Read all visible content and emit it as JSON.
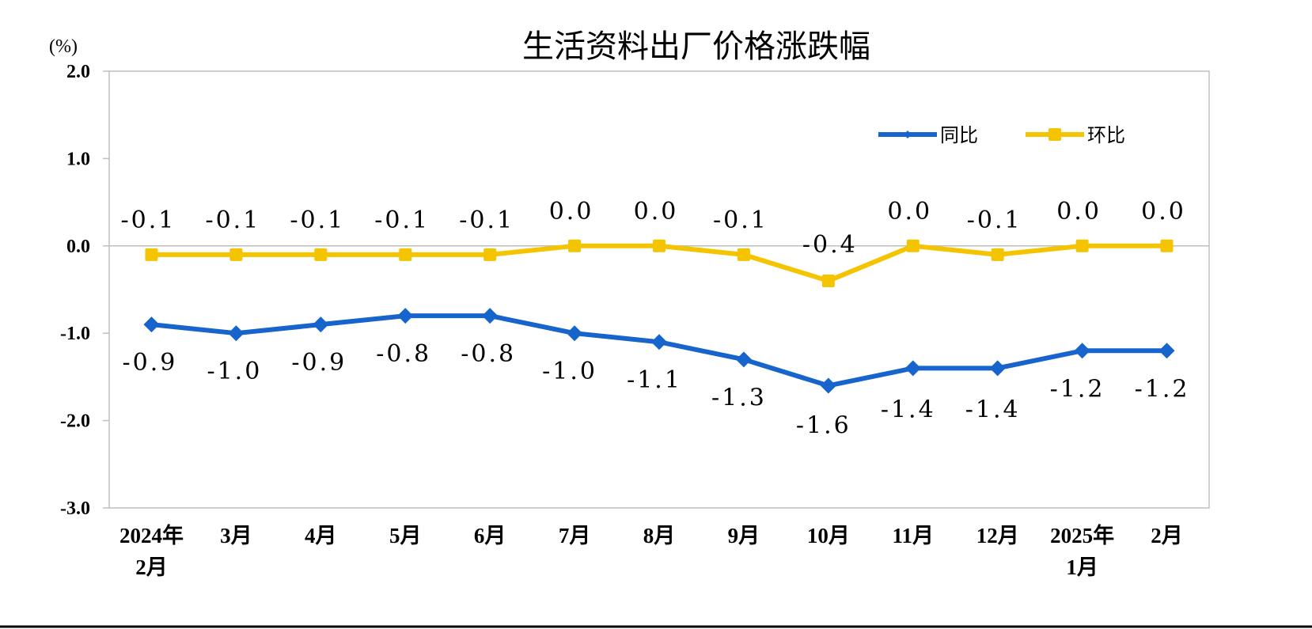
{
  "chart_data": {
    "type": "line",
    "title": "生活资料出厂价格涨跌幅",
    "ylabel": "(%)",
    "ylim": [
      -3.0,
      2.0
    ],
    "yticks": [
      "2.0",
      "1.0",
      "0.0",
      "-1.0",
      "-2.0",
      "-3.0"
    ],
    "categories": [
      [
        "2024年",
        "2月"
      ],
      [
        "3月"
      ],
      [
        "4月"
      ],
      [
        "5月"
      ],
      [
        "6月"
      ],
      [
        "7月"
      ],
      [
        "8月"
      ],
      [
        "9月"
      ],
      [
        "10月"
      ],
      [
        "11月"
      ],
      [
        "12月"
      ],
      [
        "2025年",
        "1月"
      ],
      [
        "2月"
      ]
    ],
    "series": [
      {
        "name": "同比",
        "color": "#1764cc",
        "marker": "diamond",
        "values": [
          -0.9,
          -1.0,
          -0.9,
          -0.8,
          -0.8,
          -1.0,
          -1.1,
          -1.3,
          -1.6,
          -1.4,
          -1.4,
          -1.2,
          -1.2
        ],
        "labels": [
          "-0.9",
          "-1.0",
          "-0.9",
          "-0.8",
          "-0.8",
          "-1.0",
          "-1.1",
          "-1.3",
          "-1.6",
          "-1.4",
          "-1.4",
          "-1.2",
          "-1.2"
        ]
      },
      {
        "name": "环比",
        "color": "#f5c400",
        "marker": "square",
        "values": [
          -0.1,
          -0.1,
          -0.1,
          -0.1,
          -0.1,
          0.0,
          0.0,
          -0.1,
          -0.4,
          0.0,
          -0.1,
          0.0,
          0.0
        ],
        "labels": [
          "-0.1",
          "-0.1",
          "-0.1",
          "-0.1",
          "-0.1",
          "0.0",
          "0.0",
          "-0.1",
          "-0.4",
          "0.0",
          "-0.1",
          "0.0",
          "0.0"
        ]
      }
    ],
    "legend": "top-right",
    "grid": false
  }
}
